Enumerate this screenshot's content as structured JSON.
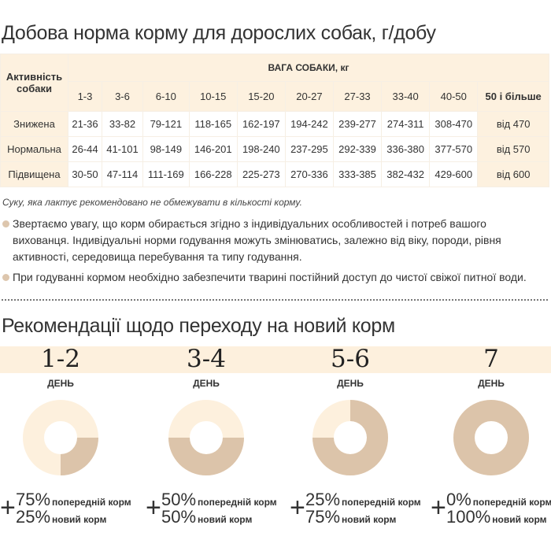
{
  "table_title": "Добова норма корму для дорослих собак, г/добу",
  "table": {
    "activity_header": "Активність собаки",
    "weight_header": "ВАГА СОБАКИ, кг",
    "weights": [
      "1-3",
      "3-6",
      "6-10",
      "10-15",
      "15-20",
      "20-27",
      "27-33",
      "33-40",
      "40-50",
      "50 і більше"
    ],
    "rows": [
      {
        "label": "Знижена",
        "values": [
          "21-36",
          "33-82",
          "79-121",
          "118-165",
          "162-197",
          "194-242",
          "239-277",
          "274-311",
          "308-470",
          "від 470"
        ]
      },
      {
        "label": "Нормальна",
        "values": [
          "26-44",
          "41-101",
          "98-149",
          "146-201",
          "198-240",
          "237-295",
          "292-339",
          "336-380",
          "377-570",
          "від 570"
        ]
      },
      {
        "label": "Підвищена",
        "values": [
          "30-50",
          "47-114",
          "111-169",
          "166-228",
          "225-273",
          "270-336",
          "333-385",
          "382-432",
          "429-600",
          "від 600"
        ]
      }
    ]
  },
  "note": "Суку, яка лактує рекомендовано не обмежувати в кількості корму.",
  "bullets": [
    "Звертаємо увагу, що корм обирається згідно з індивідуальних особливостей і потреб вашого вихованця. Індивідуальні норми годування можуть змінюватись, залежно від віку, породи, рівня активності, середовища перебування та типу годування.",
    "При годуванні кормом необхідно забезпечити тварині постійний доступ до чистої свіжої питної води."
  ],
  "transition_title": "Рекомендації щодо переходу на новий корм",
  "day_label": "ДЕНЬ",
  "colors": {
    "old_food": "#fdf0dd",
    "new_food": "#dcc4aa"
  },
  "stages": [
    {
      "days": "1-2",
      "old": "75%",
      "new": "25%",
      "new_fraction": 0.25
    },
    {
      "days": "3-4",
      "old": "50%",
      "new": "50%",
      "new_fraction": 0.5
    },
    {
      "days": "5-6",
      "old": "25%",
      "new": "75%",
      "new_fraction": 0.75
    },
    {
      "days": "7",
      "old": "0%",
      "new": "100%",
      "new_fraction": 1.0
    }
  ],
  "old_label": "попередній корм",
  "new_label": "новий корм",
  "plus": "+"
}
